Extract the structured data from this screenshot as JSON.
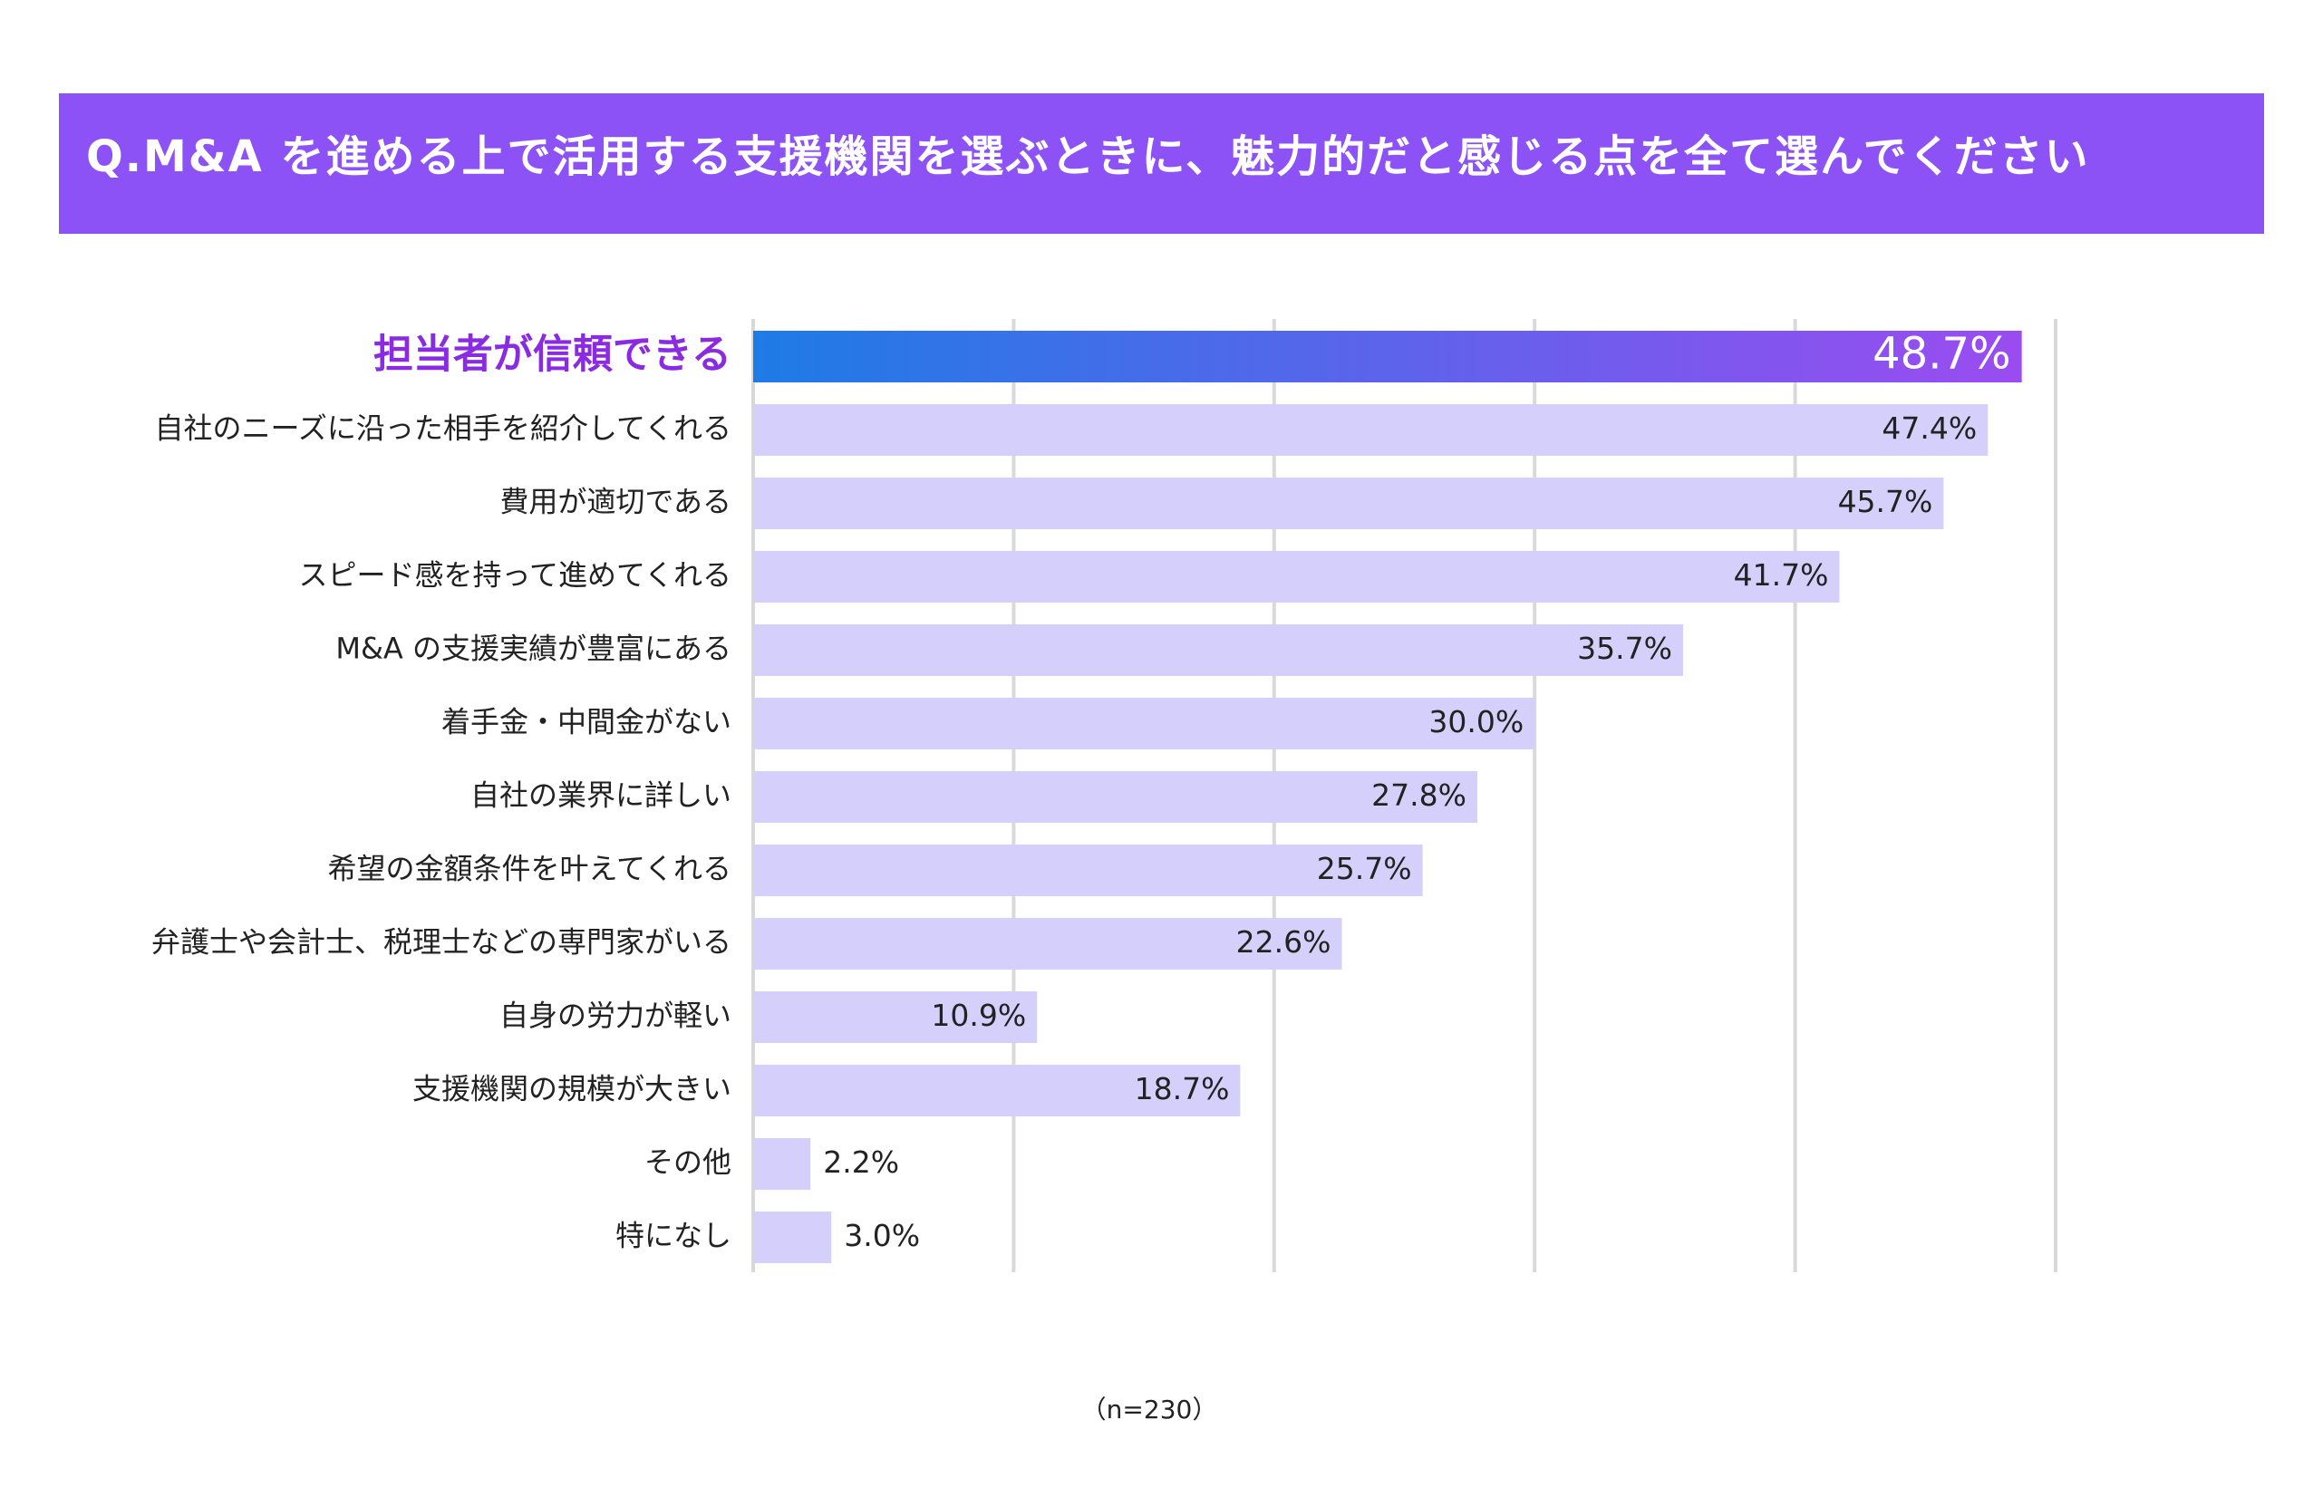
{
  "chart_data": {
    "type": "bar",
    "orientation": "horizontal",
    "title": "Q.M&A を進める上で活用する支援機関を選ぶときに、魅力的だと感じる点を全て選んでください",
    "categories": [
      "担当者が信頼できる",
      "自社のニーズに沿った相手を紹介してくれる",
      "費用が適切である",
      "スピード感を持って進めてくれる",
      "M&A の支援実績が豊富にある",
      "着手金・中間金がない",
      "自社の業界に詳しい",
      "希望の金額条件を叶えてくれる",
      "弁護士や会計士、税理士などの専門家がいる",
      "自身の労力が軽い",
      "支援機関の規模が大きい",
      "その他",
      "特になし"
    ],
    "values": [
      48.7,
      47.4,
      45.7,
      41.7,
      35.7,
      30.0,
      27.8,
      25.7,
      22.6,
      10.9,
      18.7,
      2.2,
      3.0
    ],
    "value_labels": [
      "48.7%",
      "47.4%",
      "45.7%",
      "41.7%",
      "35.7%",
      "30.0%",
      "27.8%",
      "25.7%",
      "22.6%",
      "10.9%",
      "18.7%",
      "2.2%",
      "3.0%"
    ],
    "color": "#d4d0fb",
    "highlight_colors": [
      "#1e7be6",
      "#9b4cf0"
    ],
    "title_band_color": "#8c52f5",
    "xlim": [
      0,
      50
    ],
    "xticks": [
      0,
      10,
      20,
      30,
      40,
      50
    ],
    "grid": true,
    "note": "（n=230）"
  }
}
